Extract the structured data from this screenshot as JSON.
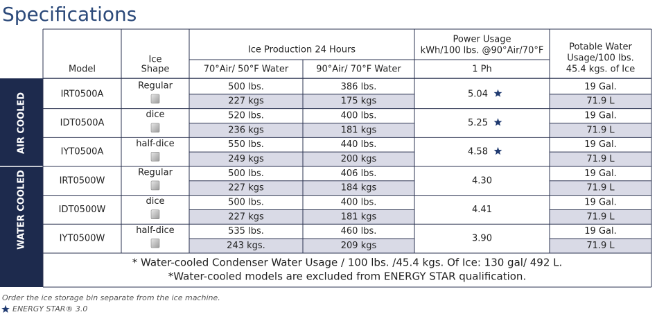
{
  "title": "Specifications",
  "table": {
    "headers": {
      "model": "Model",
      "ice_shape": [
        "Ice",
        "Shape"
      ],
      "ice_production": "Ice Production 24 Hours",
      "prod_70": "70°Air/ 50°F Water",
      "prod_90": "90°Air/ 70°F Water",
      "power": [
        "Power Usage",
        "kWh/100 lbs. @90°Air/70°F"
      ],
      "power_sub": "1 Ph",
      "water": [
        "Potable Water",
        "Usage/100 lbs.",
        "45.4 kgs. of Ice"
      ]
    },
    "groups": [
      {
        "label": "AIR COOLED",
        "rows": [
          {
            "model": "IRT0500A",
            "shape": "Regular",
            "prod_70": [
              "500 lbs.",
              "227 kgs"
            ],
            "prod_90": [
              "386 lbs.",
              "175 kgs"
            ],
            "power": "5.04",
            "water": [
              "19 Gal.",
              "71.9 L"
            ]
          },
          {
            "model": "IDT0500A",
            "shape": "dice",
            "prod_70": [
              "520 lbs.",
              "236 kgs"
            ],
            "prod_90": [
              "400 lbs.",
              "181 kgs"
            ],
            "power": "5.25",
            "water": [
              "19 Gal.",
              "71.9 L"
            ]
          },
          {
            "model": "IYT0500A",
            "shape": "half-dice",
            "prod_70": [
              "550 lbs.",
              "249 kgs"
            ],
            "prod_90": [
              "440 lbs.",
              "200 kgs"
            ],
            "power": "4.58",
            "water": [
              "19 Gal.",
              "71.9 L"
            ]
          }
        ]
      },
      {
        "label": "WATER COOLED",
        "rows": [
          {
            "model": "IRT0500W",
            "shape": "Regular",
            "prod_70": [
              "500 lbs.",
              "227 kgs"
            ],
            "prod_90": [
              "406 lbs.",
              "184 kgs"
            ],
            "power": "4.30",
            "water": [
              "19 Gal.",
              "71.9 L"
            ]
          },
          {
            "model": "IDT0500W",
            "shape": "dice",
            "prod_70": [
              "500 lbs.",
              "227 kgs"
            ],
            "prod_90": [
              "400 lbs.",
              "181 kgs"
            ],
            "power": "4.41",
            "water": [
              "19 Gal.",
              "71.9 L"
            ]
          },
          {
            "model": "IYT0500W",
            "shape": "half-dice",
            "prod_70": [
              "535 lbs.",
              "243 kgs."
            ],
            "prod_90": [
              "460 lbs.",
              "209 kgs"
            ],
            "power": "3.90",
            "water": [
              "19 Gal.",
              "71.9 L"
            ]
          }
        ]
      }
    ],
    "notes": [
      "* Water-cooled Condenser Water Usage / 100 lbs. /45.4 kgs. Of Ice: 130 gal/ 492 L.",
      "*Water-cooled models are excluded from ENERGY STAR qualification."
    ]
  },
  "footnotes": [
    "Order the ice storage bin separate from the ice machine.",
    "ENERGY STAR® 3.0"
  ]
}
